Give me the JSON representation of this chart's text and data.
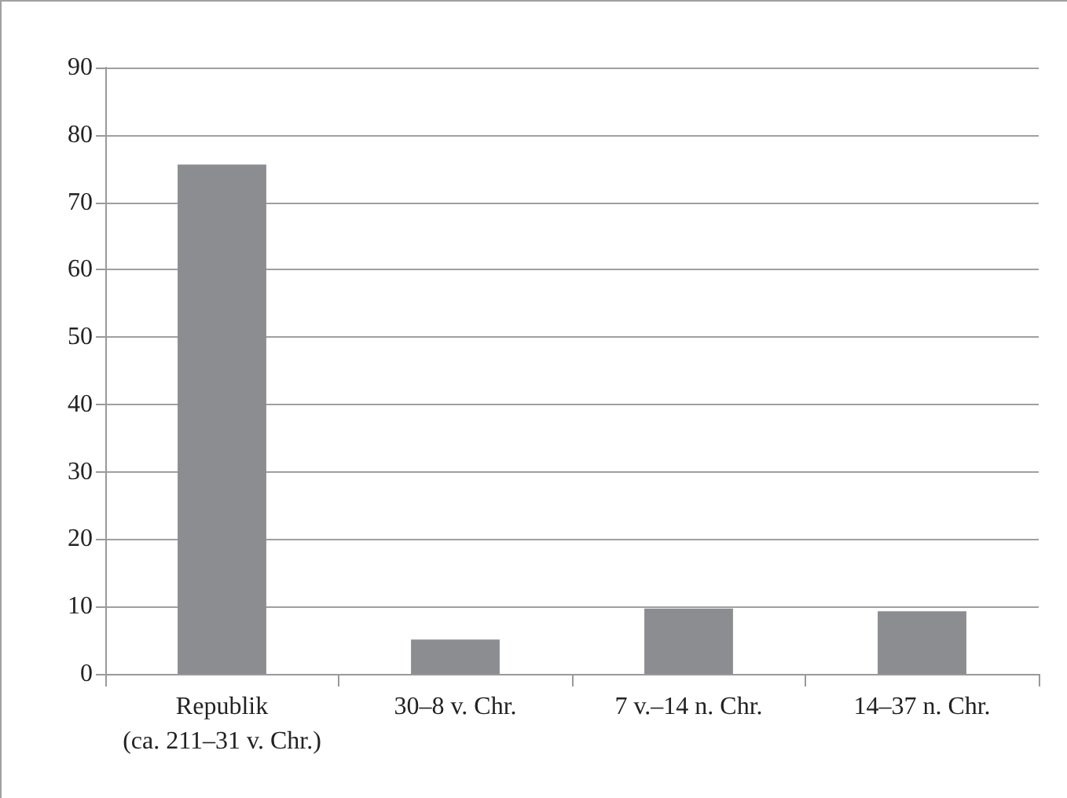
{
  "chart_data": {
    "type": "bar",
    "categories": [
      "Republik\n(ca. 211–31 v. Chr.)",
      "30–8 v. Chr.",
      "7 v.–14 n. Chr.",
      "14–37 n. Chr."
    ],
    "values": [
      75.6,
      5.1,
      9.7,
      9.3
    ],
    "color": "#8c8d91",
    "ylim": [
      0,
      90
    ],
    "yticks": [
      0,
      10,
      20,
      30,
      40,
      50,
      60,
      70,
      80,
      90
    ],
    "grid": "y"
  }
}
